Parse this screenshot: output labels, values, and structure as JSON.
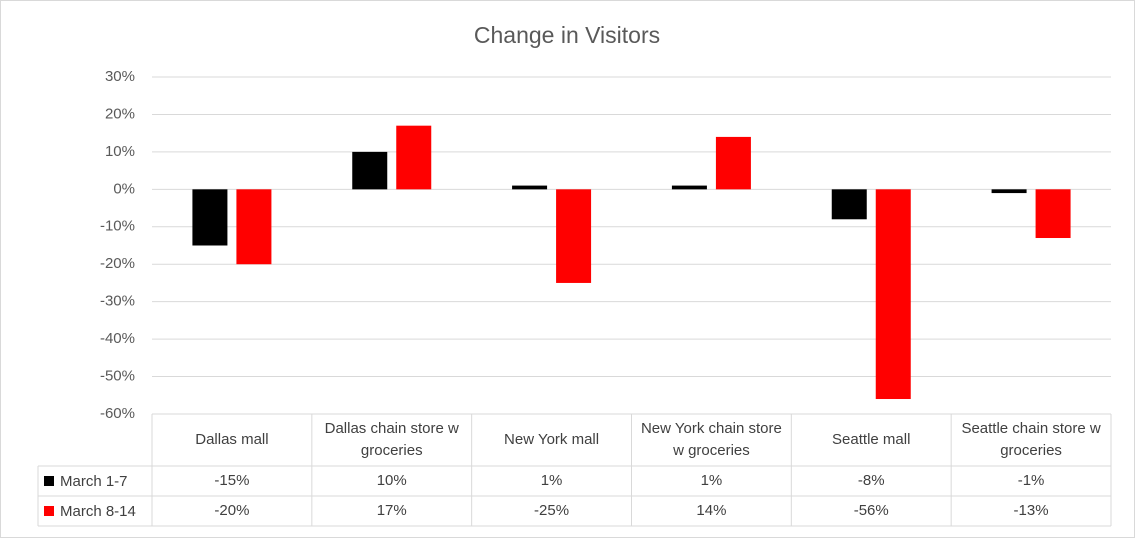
{
  "chart_data": {
    "type": "bar",
    "title": "Change in Visitors",
    "categories": [
      "Dallas mall",
      "Dallas chain store w groceries",
      "New York mall",
      "New York chain store w groceries",
      "Seattle mall",
      "Seattle chain store w groceries"
    ],
    "series": [
      {
        "name": "March 1-7",
        "color": "#000000",
        "values": [
          -15,
          10,
          1,
          1,
          -8,
          -1
        ],
        "value_labels": [
          "-15%",
          "10%",
          "1%",
          "1%",
          "-8%",
          "-1%"
        ]
      },
      {
        "name": "March 8-14",
        "color": "#ff0000",
        "values": [
          -20,
          17,
          -25,
          14,
          -56,
          -13
        ],
        "value_labels": [
          "-20%",
          "17%",
          "-25%",
          "14%",
          "-56%",
          "-13%"
        ]
      }
    ],
    "ylim": [
      -60,
      30
    ],
    "yticks": [
      {
        "value": -60,
        "label": "-60%"
      },
      {
        "value": -50,
        "label": "-50%"
      },
      {
        "value": -40,
        "label": "-40%"
      },
      {
        "value": -30,
        "label": "-30%"
      },
      {
        "value": -20,
        "label": "-20%"
      },
      {
        "value": -10,
        "label": "-10%"
      },
      {
        "value": 0,
        "label": "0%"
      },
      {
        "value": 10,
        "label": "10%"
      },
      {
        "value": 20,
        "label": "20%"
      },
      {
        "value": 30,
        "label": "30%"
      }
    ],
    "grid": true
  }
}
